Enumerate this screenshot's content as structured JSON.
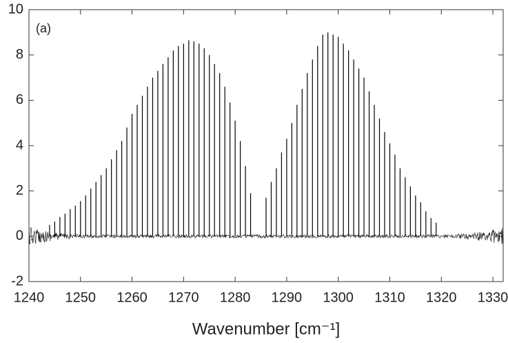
{
  "chart_data": {
    "type": "stem",
    "annotation": "(a)",
    "x_label": "Wavenumber [cm⁻¹]",
    "color": "#000000",
    "x": [
      1244,
      1245,
      1246,
      1247,
      1248,
      1249,
      1250,
      1251,
      1252,
      1253,
      1254,
      1255,
      1256,
      1257,
      1258,
      1259,
      1260,
      1261,
      1262,
      1263,
      1264,
      1265,
      1266,
      1267,
      1268,
      1269,
      1270,
      1271,
      1272,
      1273,
      1274,
      1275,
      1276,
      1277,
      1278,
      1279,
      1280,
      1281,
      1282,
      1283,
      1286,
      1287,
      1288,
      1289,
      1290,
      1291,
      1292,
      1293,
      1294,
      1295,
      1296,
      1297,
      1298,
      1299,
      1300,
      1301,
      1302,
      1303,
      1304,
      1305,
      1306,
      1307,
      1308,
      1309,
      1310,
      1311,
      1312,
      1313,
      1314,
      1315,
      1316,
      1317,
      1318,
      1319
    ],
    "values": [
      0.5,
      0.65,
      0.85,
      1.0,
      1.2,
      1.35,
      1.55,
      1.8,
      2.1,
      2.4,
      2.7,
      3.0,
      3.4,
      3.8,
      4.2,
      4.8,
      5.4,
      5.8,
      6.2,
      6.6,
      7.0,
      7.3,
      7.6,
      7.9,
      8.2,
      8.4,
      8.5,
      8.65,
      8.6,
      8.5,
      8.3,
      8.0,
      7.6,
      7.2,
      6.6,
      5.9,
      5.1,
      4.2,
      3.1,
      1.9,
      1.7,
      2.4,
      3.0,
      3.7,
      4.3,
      5.0,
      5.8,
      6.5,
      7.2,
      7.8,
      8.4,
      8.9,
      9.0,
      8.9,
      8.8,
      8.5,
      8.2,
      7.8,
      7.4,
      7.0,
      6.4,
      5.8,
      5.2,
      4.6,
      4.1,
      3.6,
      3.0,
      2.6,
      2.2,
      1.8,
      1.5,
      1.1,
      0.8,
      0.6
    ],
    "xlim": [
      1240,
      1332
    ],
    "ylim": [
      -2,
      10
    ],
    "xticks": [
      1240,
      1250,
      1260,
      1270,
      1280,
      1290,
      1300,
      1310,
      1320,
      1330
    ],
    "yticks": [
      -2,
      0,
      2,
      4,
      6,
      8,
      10
    ]
  }
}
